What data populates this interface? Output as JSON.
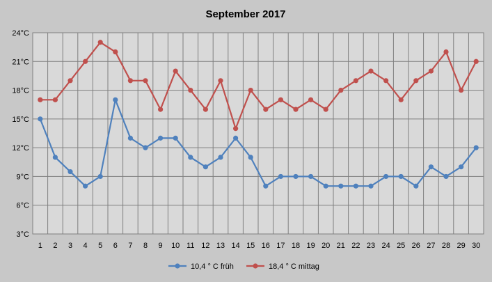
{
  "chart_data": {
    "type": "line",
    "title": "September 2017",
    "xlabel": "",
    "ylabel": "",
    "categories": [
      "1",
      "2",
      "3",
      "4",
      "5",
      "6",
      "7",
      "8",
      "9",
      "10",
      "11",
      "12",
      "13",
      "14",
      "15",
      "16",
      "17",
      "18",
      "19",
      "20",
      "21",
      "22",
      "23",
      "24",
      "25",
      "26",
      "27",
      "28",
      "29",
      "30"
    ],
    "y_ticks": [
      "3°C",
      "6°C",
      "9°C",
      "12°C",
      "15°C",
      "18°C",
      "21°C",
      "24°C"
    ],
    "ylim": [
      3,
      24
    ],
    "grid": true,
    "legend_position": "bottom",
    "series": [
      {
        "name": "10,4 ° C früh",
        "color": "#4f81bd",
        "values": [
          15,
          11,
          9.5,
          8,
          9,
          17,
          13,
          12,
          13,
          13,
          11,
          10,
          11,
          13,
          11,
          8,
          9,
          9,
          9,
          8,
          8,
          8,
          8,
          9,
          9,
          8,
          10,
          9,
          10,
          12
        ]
      },
      {
        "name": "18,4 ° C mittag",
        "color": "#c0504d",
        "values": [
          17,
          17,
          19,
          21,
          23,
          22,
          19,
          19,
          16,
          20,
          18,
          16,
          19,
          14,
          18,
          16,
          17,
          16,
          17,
          16,
          18,
          19,
          20,
          19,
          17,
          19,
          20,
          22,
          18,
          21
        ]
      }
    ]
  }
}
